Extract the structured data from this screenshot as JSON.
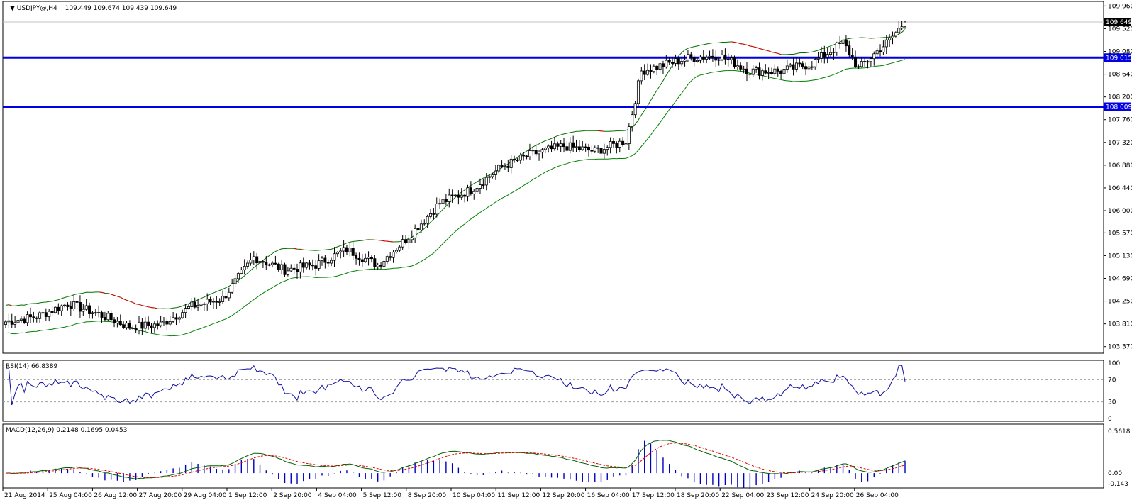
{
  "main_title": "USDJPY@,H4",
  "ohlc": "109.449 109.674 109.439 109.649",
  "price_axis": {
    "labels": [
      "109.960",
      "109.520",
      "109.080",
      "108.640",
      "108.200",
      "107.760",
      "107.320",
      "106.880",
      "106.440",
      "106.000",
      "105.570",
      "105.130",
      "104.690",
      "104.250",
      "103.810",
      "103.370"
    ],
    "range": [
      103.27,
      110.02
    ]
  },
  "current_price": "109.649",
  "hlines": [
    {
      "label": "109.015",
      "price": 108.96
    },
    {
      "label": "108.009",
      "price": 108.01
    }
  ],
  "rsi": {
    "title": "RSI(14) 66.8389",
    "levels": [
      "100",
      "70",
      "30",
      "0"
    ]
  },
  "macd": {
    "title": "MACD(12,26,9) 0.2148 0.1695 0.0453",
    "levels": [
      "0.5618",
      "0.00",
      "-0.143"
    ]
  },
  "time_labels": [
    "21 Aug 2014",
    "25 Aug 04:00",
    "26 Aug 12:00",
    "27 Aug 20:00",
    "29 Aug 04:00",
    "1 Sep 12:00",
    "2 Sep 20:00",
    "4 Sep 04:00",
    "5 Sep 12:00",
    "8 Sep 20:00",
    "10 Sep 04:00",
    "11 Sep 12:00",
    "12 Sep 20:00",
    "16 Sep 04:00",
    "17 Sep 12:00",
    "18 Sep 20:00",
    "22 Sep 04:00",
    "23 Sep 12:00",
    "24 Sep 20:00",
    "26 Sep 04:00"
  ],
  "chart_data": {
    "type": "candlestick",
    "symbol": "USDJPY@,H4",
    "key_points_close": [
      [
        0,
        103.85
      ],
      [
        10,
        103.95
      ],
      [
        20,
        104.2
      ],
      [
        30,
        104.0
      ],
      [
        40,
        103.75
      ],
      [
        50,
        103.8
      ],
      [
        60,
        104.15
      ],
      [
        70,
        104.3
      ],
      [
        80,
        105.1
      ],
      [
        90,
        104.85
      ],
      [
        100,
        104.95
      ],
      [
        110,
        105.25
      ],
      [
        120,
        104.95
      ],
      [
        130,
        105.5
      ],
      [
        140,
        106.15
      ],
      [
        150,
        106.4
      ],
      [
        160,
        106.85
      ],
      [
        170,
        107.1
      ],
      [
        180,
        107.25
      ],
      [
        190,
        107.15
      ],
      [
        200,
        107.35
      ],
      [
        205,
        108.7
      ],
      [
        220,
        108.95
      ],
      [
        230,
        109.0
      ],
      [
        240,
        108.7
      ],
      [
        250,
        108.7
      ],
      [
        260,
        108.85
      ],
      [
        270,
        109.25
      ],
      [
        275,
        108.75
      ],
      [
        285,
        109.3
      ],
      [
        290,
        109.649
      ]
    ],
    "rsi_value": 66.8389,
    "macd": {
      "main": 0.2148,
      "signal": 0.1695,
      "histogram": 0.0453
    }
  }
}
